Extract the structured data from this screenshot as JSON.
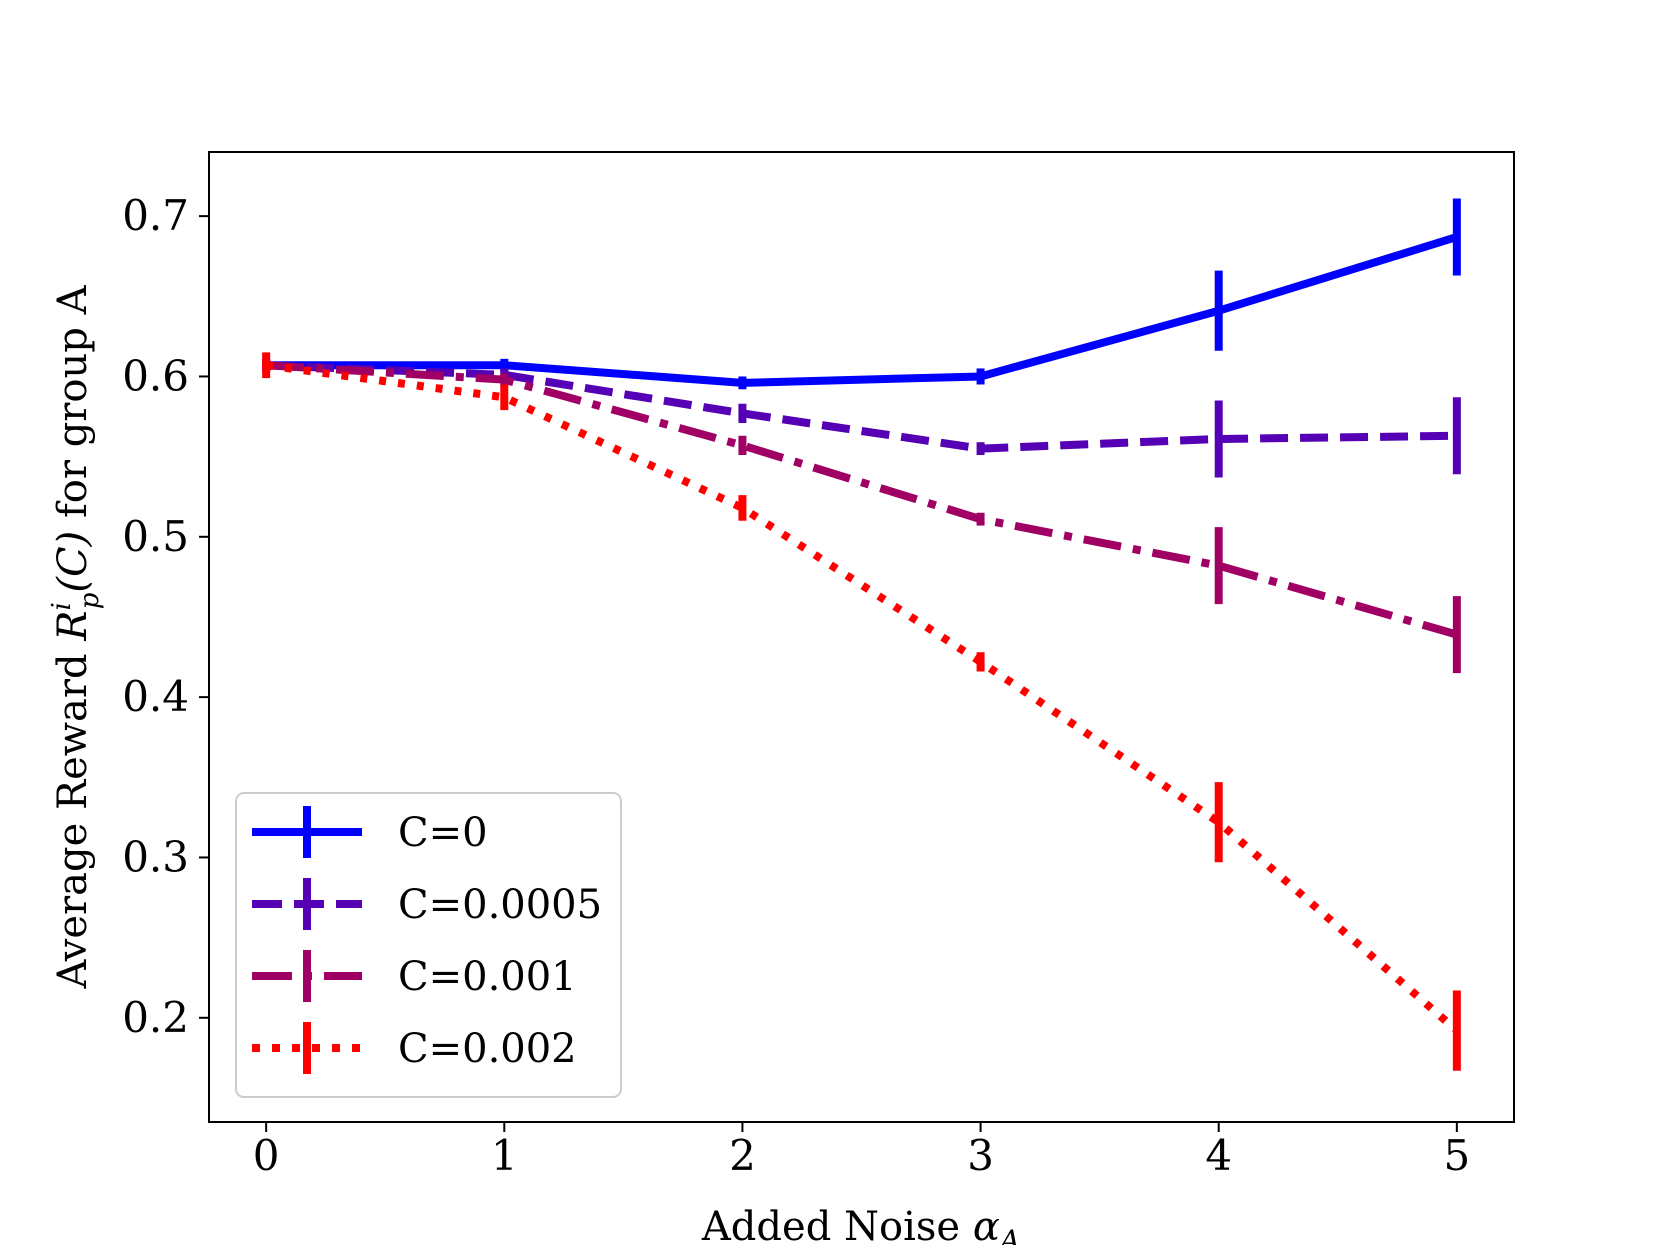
{
  "chart_data": {
    "type": "line",
    "title": "",
    "xlabel": "Added Noise αA",
    "xlabel_main": "Added Noise ",
    "xlabel_symbol": "α",
    "xlabel_sub": "A",
    "ylabel": "Average Reward Rpi(C) for group A",
    "ylabel_prefix": "Average Reward ",
    "ylabel_symbol": "R",
    "ylabel_sub": "p",
    "ylabel_sup": "i",
    "ylabel_arg": "(C)",
    "ylabel_suffix": " for group A",
    "x": [
      0,
      1,
      2,
      3,
      4,
      5
    ],
    "xticks": [
      "0",
      "1",
      "2",
      "3",
      "4",
      "5"
    ],
    "yticks": [
      "0.2",
      "0.3",
      "0.4",
      "0.5",
      "0.6",
      "0.7"
    ],
    "ytick_values": [
      0.2,
      0.3,
      0.4,
      0.5,
      0.6,
      0.7
    ],
    "xlim": [
      -0.24,
      5.24
    ],
    "ylim": [
      0.135,
      0.74
    ],
    "grid": false,
    "legend_position": "lower-left",
    "series": [
      {
        "name": "C=0",
        "color": "#0000ff",
        "linestyle": "solid",
        "values": [
          0.607,
          0.607,
          0.596,
          0.6,
          0.641,
          0.687
        ],
        "errors": [
          0.004,
          0.004,
          0.004,
          0.005,
          0.025,
          0.024
        ]
      },
      {
        "name": "C=0.0005",
        "color": "#5500b4",
        "linestyle": "dashed",
        "values": [
          0.607,
          0.601,
          0.577,
          0.555,
          0.561,
          0.563
        ],
        "errors": [
          0.004,
          0.004,
          0.006,
          0.004,
          0.024,
          0.024
        ]
      },
      {
        "name": "C=0.001",
        "color": "#a00064",
        "linestyle": "dashdot",
        "values": [
          0.607,
          0.598,
          0.557,
          0.511,
          0.482,
          0.439
        ],
        "errors": [
          0.004,
          0.004,
          0.006,
          0.004,
          0.024,
          0.024
        ]
      },
      {
        "name": "C=0.002",
        "color": "#ff0000",
        "linestyle": "dotted",
        "values": [
          0.607,
          0.587,
          0.518,
          0.422,
          0.322,
          0.192
        ],
        "errors": [
          0.008,
          0.008,
          0.008,
          0.006,
          0.025,
          0.025
        ]
      }
    ]
  }
}
